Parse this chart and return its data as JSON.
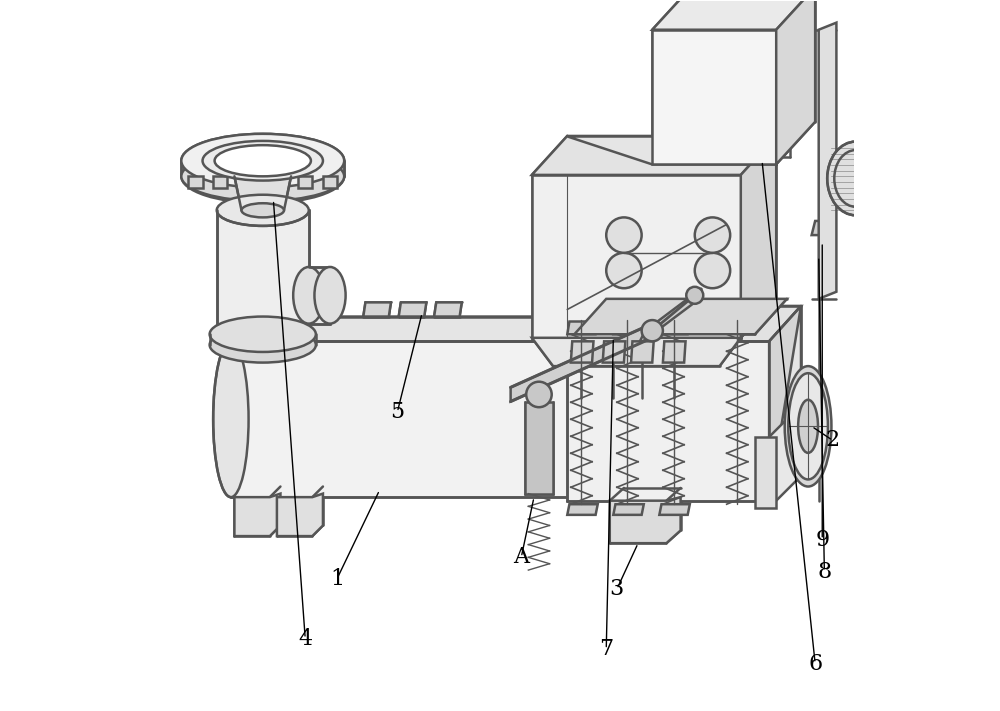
{
  "background_color": "#ffffff",
  "line_color": "#555555",
  "label_color": "#000000",
  "fig_width": 10.0,
  "fig_height": 7.11,
  "dpi": 100,
  "label_fontsize": 16,
  "line_width": 1.8
}
